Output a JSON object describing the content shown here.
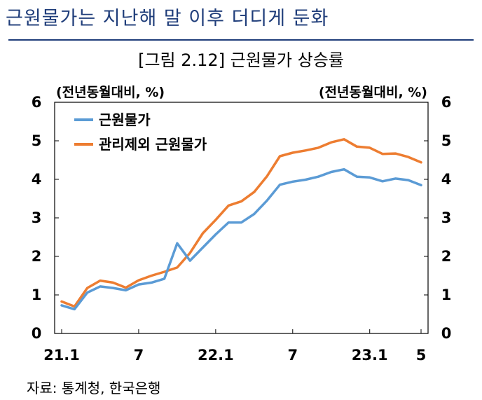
{
  "headline": "근원물가는 지난해 말 이후 더디게 둔화",
  "source": "자료: 통계청, 한국은행",
  "colors": {
    "headline": "#1f3d7a",
    "series_1": "#5b9bd5",
    "series_2": "#ed7d31"
  },
  "chart_data": {
    "type": "line",
    "title": "[그림 2.12] 근원물가 상승률",
    "ylabel_left": "(전년동월대비, %)",
    "ylabel_right": "(전년동월대비, %)",
    "ylim": [
      0,
      6
    ],
    "yticks": [
      0,
      1,
      2,
      3,
      4,
      5,
      6
    ],
    "x": [
      "21.1",
      "21.2",
      "21.3",
      "21.4",
      "21.5",
      "21.6",
      "21.7",
      "21.8",
      "21.9",
      "21.10",
      "21.11",
      "21.12",
      "22.1",
      "22.2",
      "22.3",
      "22.4",
      "22.5",
      "22.6",
      "22.7",
      "22.8",
      "22.9",
      "22.10",
      "22.11",
      "22.12",
      "23.1",
      "23.2",
      "23.3",
      "23.4",
      "23.5"
    ],
    "xtick_labels": [
      {
        "index": 0,
        "label": "21.1"
      },
      {
        "index": 6,
        "label": "7"
      },
      {
        "index": 12,
        "label": "22.1"
      },
      {
        "index": 18,
        "label": "7"
      },
      {
        "index": 24,
        "label": "23.1"
      },
      {
        "index": 28,
        "label": "5"
      }
    ],
    "legend_position": "top-left",
    "grid": false,
    "series": [
      {
        "name": "근원물가",
        "values": [
          0.73,
          0.63,
          1.06,
          1.22,
          1.18,
          1.12,
          1.27,
          1.32,
          1.42,
          2.34,
          1.89,
          2.23,
          2.57,
          2.88,
          2.88,
          3.1,
          3.45,
          3.86,
          3.94,
          3.99,
          4.07,
          4.19,
          4.26,
          4.07,
          4.05,
          3.95,
          4.02,
          3.98,
          3.85
        ]
      },
      {
        "name": "관리제외 근원물가",
        "values": [
          0.83,
          0.7,
          1.18,
          1.37,
          1.32,
          1.19,
          1.38,
          1.5,
          1.6,
          1.71,
          2.09,
          2.6,
          2.95,
          3.32,
          3.43,
          3.67,
          4.08,
          4.6,
          4.69,
          4.75,
          4.82,
          4.96,
          5.04,
          4.85,
          4.82,
          4.66,
          4.67,
          4.58,
          4.44
        ]
      }
    ]
  }
}
